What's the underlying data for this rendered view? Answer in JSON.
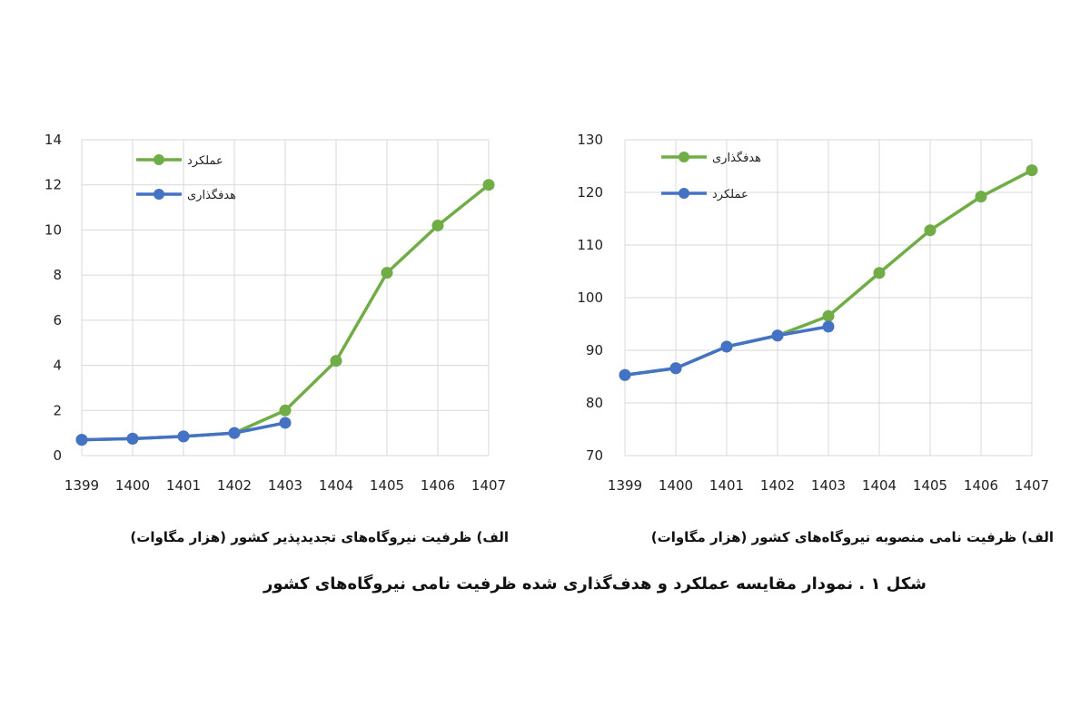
{
  "colors": {
    "green": "#70AD47",
    "blue": "#4472C4",
    "grid": "#d9d9d9"
  },
  "chart_data": [
    {
      "type": "line",
      "categories": [
        "1399",
        "1400",
        "1401",
        "1402",
        "1403",
        "1404",
        "1405",
        "1406",
        "1407"
      ],
      "ylim": [
        0,
        14
      ],
      "yticks": [
        "0",
        "2",
        "4",
        "6",
        "8",
        "10",
        "12",
        "14"
      ],
      "grid": true,
      "legend_position": "top-left",
      "series": [
        {
          "name": "عملکرد",
          "color": "#70AD47",
          "values": [
            0.7,
            0.75,
            0.85,
            1.0,
            2.0,
            4.2,
            8.1,
            10.2,
            12.0
          ]
        },
        {
          "name": "هدفگذاری",
          "color": "#4472C4",
          "values": [
            0.7,
            0.75,
            0.85,
            1.0,
            1.45,
            null,
            null,
            null,
            null
          ]
        }
      ],
      "caption": "الف) ظرفیت نیروگاه‌های تجدیدپذیر کشور (هزار مگاوات)"
    },
    {
      "type": "line",
      "categories": [
        "1399",
        "1400",
        "1401",
        "1402",
        "1403",
        "1404",
        "1405",
        "1406",
        "1407"
      ],
      "ylim": [
        70,
        130
      ],
      "yticks": [
        "70",
        "80",
        "90",
        "100",
        "110",
        "120",
        "130"
      ],
      "grid": true,
      "legend_position": "top-left",
      "series": [
        {
          "name": "هدفگذاری",
          "color": "#70AD47",
          "values": [
            85.3,
            86.6,
            90.7,
            92.8,
            96.5,
            104.7,
            112.8,
            119.2,
            124.2
          ]
        },
        {
          "name": "عملکرد",
          "color": "#4472C4",
          "values": [
            85.3,
            86.6,
            90.7,
            92.8,
            94.5,
            null,
            null,
            null,
            null
          ]
        }
      ],
      "caption": "الف) ظرفیت نامی منصوبه نیروگاه‌های کشور (هزار مگاوات)"
    }
  ],
  "figure_caption": "شکل ۱ . نمودار مقایسه عملکرد و هدف‌گذاری شده ظرفیت نامی نیروگاه‌های کشور"
}
